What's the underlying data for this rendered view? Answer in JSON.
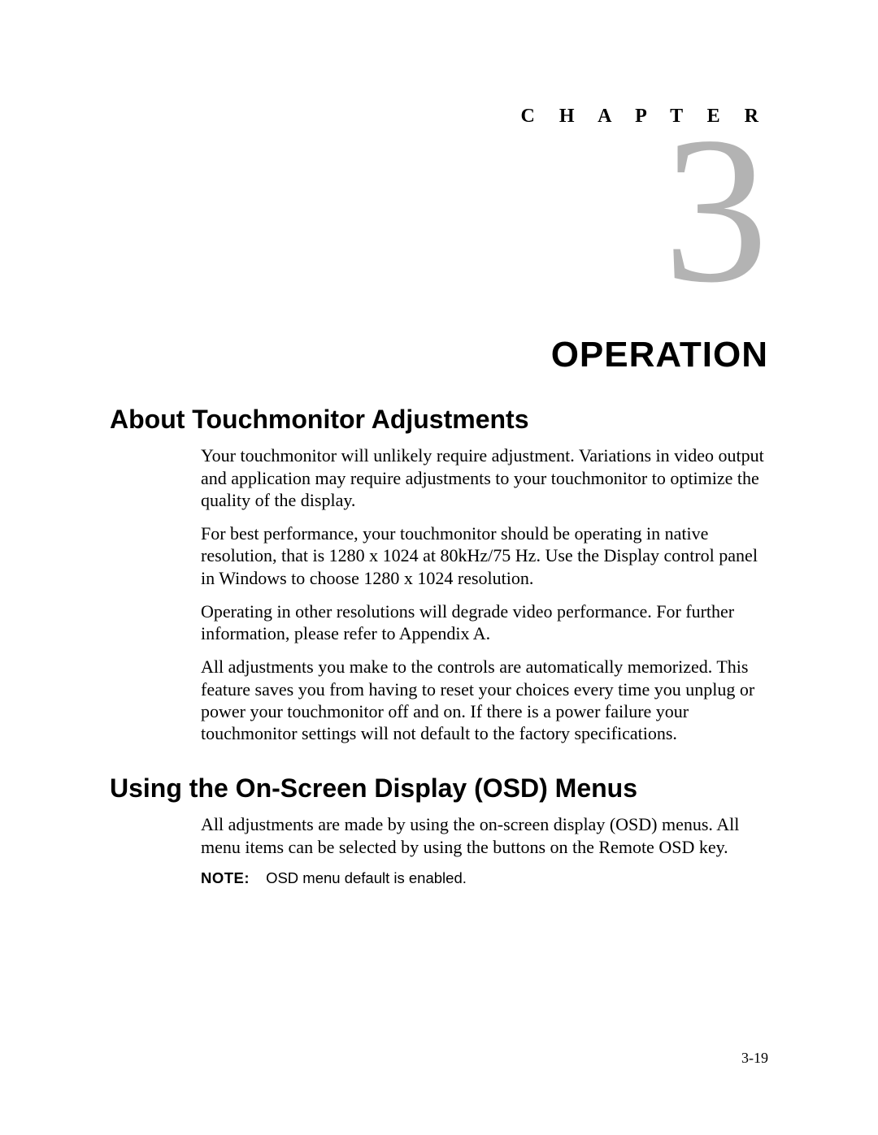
{
  "chapter_label": "C H A P T E R",
  "chapter_number": "3",
  "chapter_title": "OPERATION",
  "section1_heading": "About Touchmonitor Adjustments",
  "section1_paras": {
    "p0": "Your touchmonitor will unlikely require adjustment. Variations in video output and application may require adjustments to your touchmonitor to optimize the quality of the display.",
    "p1": "For best performance, your touchmonitor should be operating in native resolution, that is 1280 x 1024 at 80kHz/75 Hz. Use the Display control panel in Windows to choose 1280 x 1024 resolution.",
    "p2": "Operating in other resolutions will degrade video performance. For further information, please refer to Appendix A.",
    "p3": "All adjustments you make to the controls are automatically memorized. This feature saves you from having to reset your choices every time you unplug or power your touchmonitor off and on. If there is a power failure your touchmonitor settings will not default to the factory specifications."
  },
  "section2_heading": "Using the On-Screen Display (OSD) Menus",
  "section2_paras": {
    "p0": "All adjustments are made by using the on-screen display (OSD) menus. All menu items can be selected by using the buttons on the Remote OSD key."
  },
  "note_label": "NOTE:",
  "note_text": "OSD menu default is enabled.",
  "page_number": "3-19",
  "colors": {
    "text": "#000000",
    "chapter_number": "#b3b3b3",
    "background": "#ffffff"
  },
  "typography": {
    "body_font": "Times New Roman",
    "heading_font": "Arial",
    "body_size_pt": 16,
    "h1_size_pt": 24,
    "chapter_title_size_pt": 32,
    "chapter_number_size_pt": 190
  }
}
